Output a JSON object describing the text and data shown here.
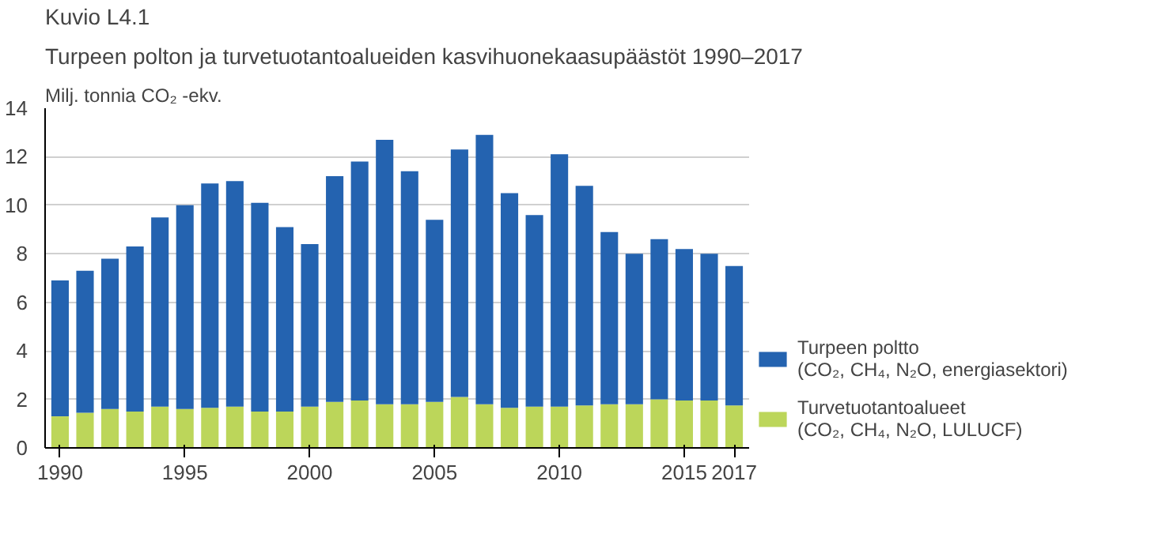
{
  "chart_data": {
    "type": "bar",
    "title": "Kuvio L4.1",
    "subtitle": "Turpeen polton ja turvetuotantoalueiden kasvihuonekaasupäästöt 1990–2017",
    "ylabel": "Milj. tonnia CO₂ -ekv.",
    "x": [
      1990,
      1991,
      1992,
      1993,
      1994,
      1995,
      1996,
      1997,
      1998,
      1999,
      2000,
      2001,
      2002,
      2003,
      2004,
      2005,
      2006,
      2007,
      2008,
      2009,
      2010,
      2011,
      2012,
      2013,
      2014,
      2015,
      2016,
      2017
    ],
    "stacked": true,
    "series": [
      {
        "name": "Turvetuotantoalueet\n(CO₂, CH₄, N₂O, LULUCF)",
        "color": "#bcd65a",
        "values": [
          1.3,
          1.45,
          1.6,
          1.5,
          1.7,
          1.6,
          1.65,
          1.7,
          1.5,
          1.5,
          1.7,
          1.9,
          1.95,
          1.8,
          1.8,
          1.9,
          2.1,
          1.8,
          1.65,
          1.7,
          1.7,
          1.75,
          1.8,
          1.8,
          2.0,
          1.95,
          1.95,
          1.75
        ]
      },
      {
        "name": "Turpeen poltto\n(CO₂, CH₄, N₂O, energiasektori)",
        "color": "#2463b0",
        "values": [
          5.6,
          5.85,
          6.2,
          6.8,
          7.8,
          8.4,
          9.25,
          9.3,
          8.6,
          7.6,
          6.7,
          9.3,
          9.85,
          10.9,
          9.6,
          7.5,
          10.2,
          11.1,
          8.85,
          7.9,
          10.4,
          9.05,
          7.1,
          6.2,
          6.6,
          6.25,
          6.05,
          5.75
        ]
      }
    ],
    "xlim": [
      1989.4,
      2017.6
    ],
    "xticks": [
      1990,
      1995,
      2000,
      2005,
      2010,
      2015,
      2017
    ],
    "ylim": [
      0,
      14
    ],
    "yticks": [
      0,
      2,
      4,
      6,
      8,
      10,
      12,
      14
    ],
    "grid": "y",
    "legend": "right"
  }
}
